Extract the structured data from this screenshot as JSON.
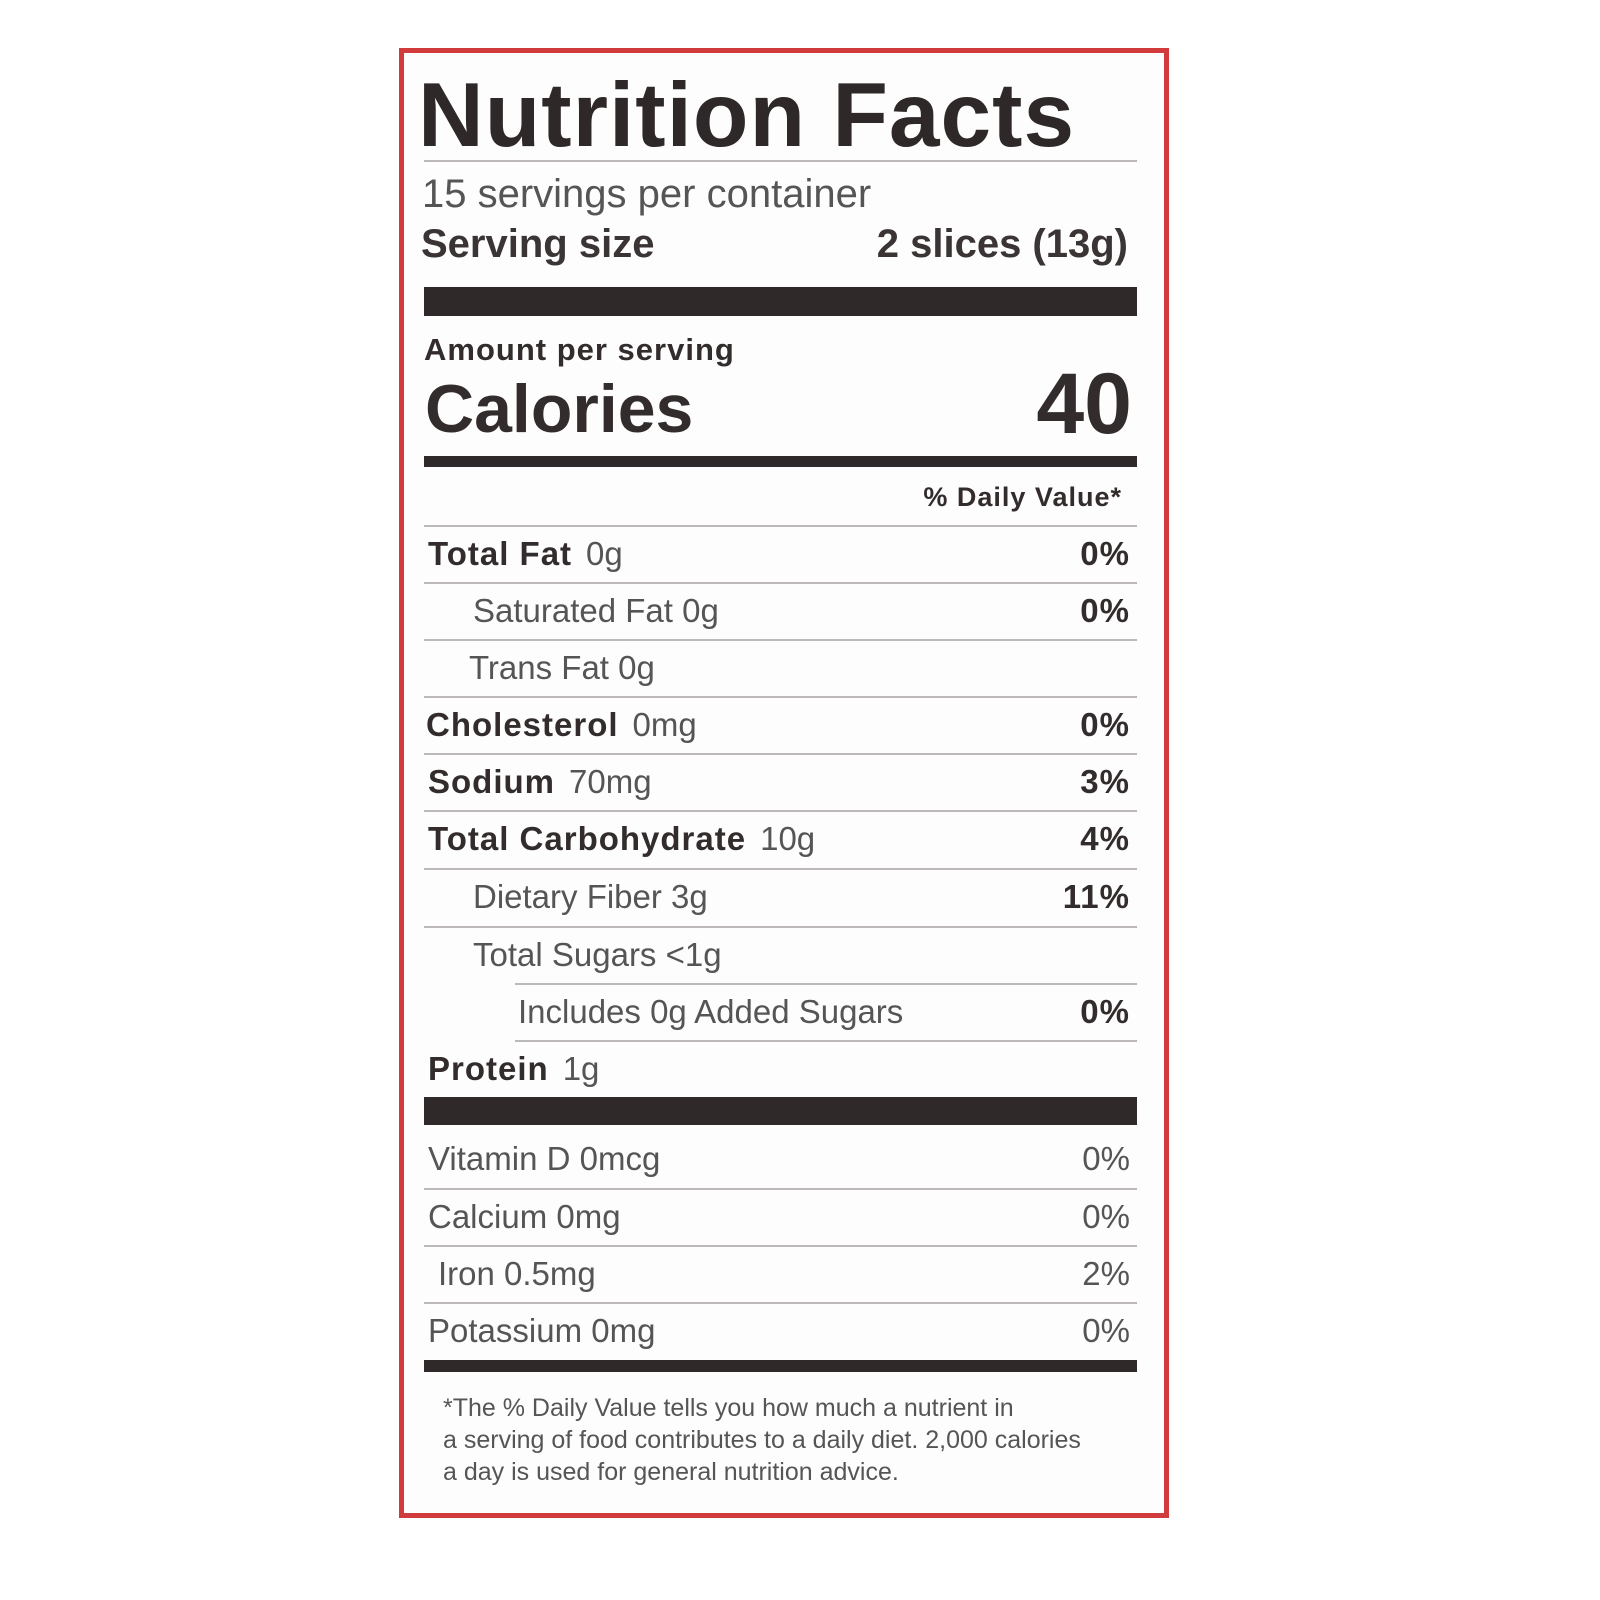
{
  "label": {
    "title": "Nutrition Facts",
    "servings_per_container": "15 servings per container",
    "serving_size_label": "Serving size",
    "serving_size_value": "2 slices (13g)",
    "amount_per_serving": "Amount per serving",
    "calories_label": "Calories",
    "calories_value": "40",
    "daily_value_header": "% Daily Value*",
    "nutrients": [
      {
        "name": "Total Fat",
        "amount": "0g",
        "dv": "0%"
      },
      {
        "name": "Saturated Fat 0g",
        "amount": "",
        "dv": "0%"
      },
      {
        "name": "Trans Fat 0g",
        "amount": "",
        "dv": ""
      },
      {
        "name": "Cholesterol",
        "amount": "0mg",
        "dv": "0%"
      },
      {
        "name": "Sodium",
        "amount": "70mg",
        "dv": "3%"
      },
      {
        "name": "Total Carbohydrate",
        "amount": "10g",
        "dv": "4%"
      },
      {
        "name": "Dietary Fiber 3g",
        "amount": "",
        "dv": "11%"
      },
      {
        "name": "Total Sugars <1g",
        "amount": "",
        "dv": ""
      },
      {
        "name": "Includes 0g Added Sugars",
        "amount": "",
        "dv": "0%"
      },
      {
        "name": "Protein",
        "amount": "1g",
        "dv": ""
      }
    ],
    "vitamins": [
      {
        "name": "Vitamin D 0mcg",
        "dv": "0%"
      },
      {
        "name": "Calcium 0mg",
        "dv": "0%"
      },
      {
        "name": "Iron 0.5mg",
        "dv": "2%"
      },
      {
        "name": "Potassium 0mg",
        "dv": "0%"
      }
    ],
    "footnote": [
      "*The % Daily Value tells you how much a nutrient in",
      "a serving of food contributes to a daily diet. 2,000 calories",
      "a day is used for general nutrition advice."
    ],
    "border_color": "#d23b3b"
  }
}
